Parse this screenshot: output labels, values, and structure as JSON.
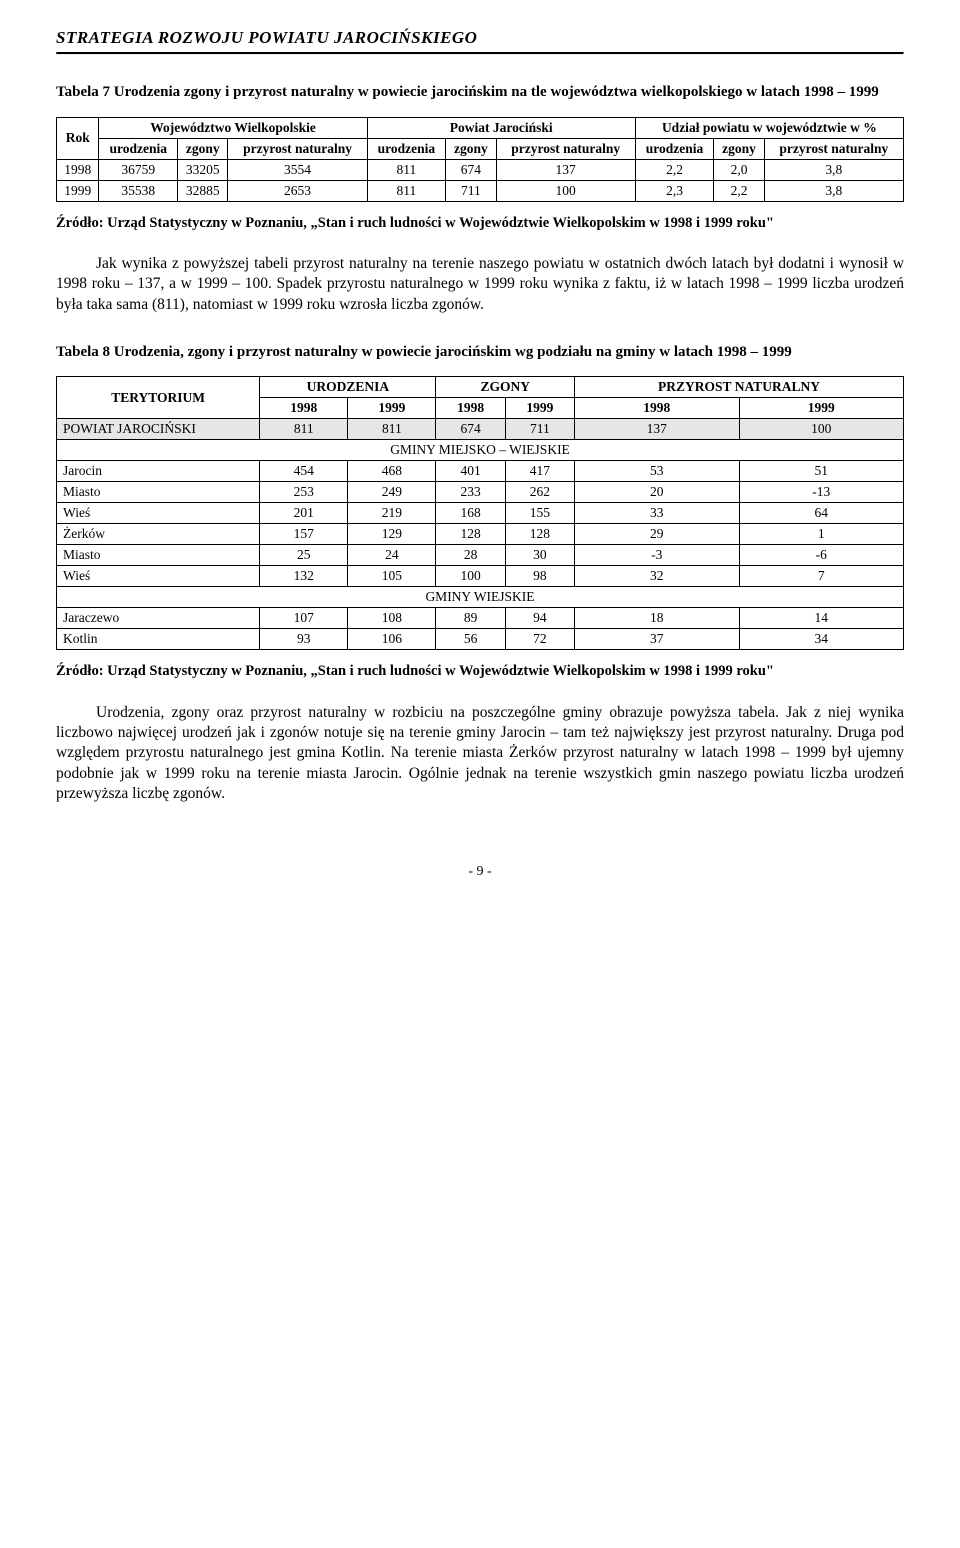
{
  "header": {
    "title": "STRATEGIA ROZWOJU POWIATU JAROCIŃSKIEGO"
  },
  "table7": {
    "caption": "Tabela 7 Urodzenia zgony i przyrost naturalny w powiecie jarocińskim na tle województwa wielkopolskiego w latach 1998 – 1999",
    "headers": {
      "rok": "Rok",
      "group1": "Województwo Wielkopolskie",
      "group2": "Powiat Jarociński",
      "group3": "Udział powiatu w województwie w %",
      "urodzenia": "urodzenia",
      "zgony": "zgony",
      "przyrost": "przyrost naturalny"
    },
    "rows": [
      {
        "rok": "1998",
        "v": [
          "36759",
          "33205",
          "3554",
          "811",
          "674",
          "137",
          "2,2",
          "2,0",
          "3,8"
        ]
      },
      {
        "rok": "1999",
        "v": [
          "35538",
          "32885",
          "2653",
          "811",
          "711",
          "100",
          "2,3",
          "2,2",
          "3,8"
        ]
      }
    ],
    "source": "Źródło: Urząd Statystyczny w Poznaniu, „Stan i ruch ludności w Województwie Wielkopolskim w 1998 i 1999 roku\""
  },
  "para1": "Jak wynika z powyższej tabeli przyrost naturalny na terenie naszego powiatu w ostatnich dwóch latach był dodatni i wynosił w 1998 roku – 137, a w 1999 – 100. Spadek przyrostu naturalnego w 1999 roku wynika z faktu, iż w latach 1998 – 1999 liczba urodzeń była taka sama (811), natomiast w 1999 roku wzrosła liczba zgonów.",
  "table8": {
    "caption": "Tabela 8 Urodzenia, zgony i przyrost naturalny w powiecie jarocińskim wg podziału na gminy w latach 1998 – 1999",
    "headers": {
      "terytorium": "TERYTORIUM",
      "urodzenia": "URODZENIA",
      "zgony": "ZGONY",
      "przyrost": "PRZYROST NATURALNY",
      "y98": "1998",
      "y99": "1999"
    },
    "powiat_row": {
      "label": "POWIAT JAROCIŃSKI",
      "v": [
        "811",
        "811",
        "674",
        "711",
        "137",
        "100"
      ]
    },
    "section1": "GMINY MIEJSKO – WIEJSKIE",
    "rows1": [
      {
        "label": "Jarocin",
        "v": [
          "454",
          "468",
          "401",
          "417",
          "53",
          "51"
        ]
      },
      {
        "label": "Miasto",
        "v": [
          "253",
          "249",
          "233",
          "262",
          "20",
          "-13"
        ]
      },
      {
        "label": "Wieś",
        "v": [
          "201",
          "219",
          "168",
          "155",
          "33",
          "64"
        ]
      },
      {
        "label": "Żerków",
        "v": [
          "157",
          "129",
          "128",
          "128",
          "29",
          "1"
        ]
      },
      {
        "label": "Miasto",
        "v": [
          "25",
          "24",
          "28",
          "30",
          "-3",
          "-6"
        ]
      },
      {
        "label": "Wieś",
        "v": [
          "132",
          "105",
          "100",
          "98",
          "32",
          "7"
        ]
      }
    ],
    "section2": "GMINY WIEJSKIE",
    "rows2": [
      {
        "label": "Jaraczewo",
        "v": [
          "107",
          "108",
          "89",
          "94",
          "18",
          "14"
        ]
      },
      {
        "label": "Kotlin",
        "v": [
          "93",
          "106",
          "56",
          "72",
          "37",
          "34"
        ]
      }
    ],
    "source": "Źródło: Urząd Statystyczny w Poznaniu, „Stan i ruch ludności w Województwie Wielkopolskim  w 1998 i 1999 roku\""
  },
  "para2": "Urodzenia, zgony oraz przyrost naturalny w rozbiciu na poszczególne gminy obrazuje powyższa tabela. Jak z niej wynika liczbowo najwięcej urodzeń jak i zgonów notuje się na terenie gminy Jarocin – tam też największy jest przyrost naturalny. Druga pod względem przyrostu naturalnego jest gmina Kotlin. Na terenie miasta Żerków przyrost naturalny w latach 1998 – 1999 był ujemny podobnie jak w 1999 roku na terenie miasta Jarocin. Ogólnie jednak na terenie wszystkich gmin naszego powiatu liczba urodzeń przewyższa liczbę zgonów.",
  "footer": {
    "pagenum": "- 9 -"
  }
}
